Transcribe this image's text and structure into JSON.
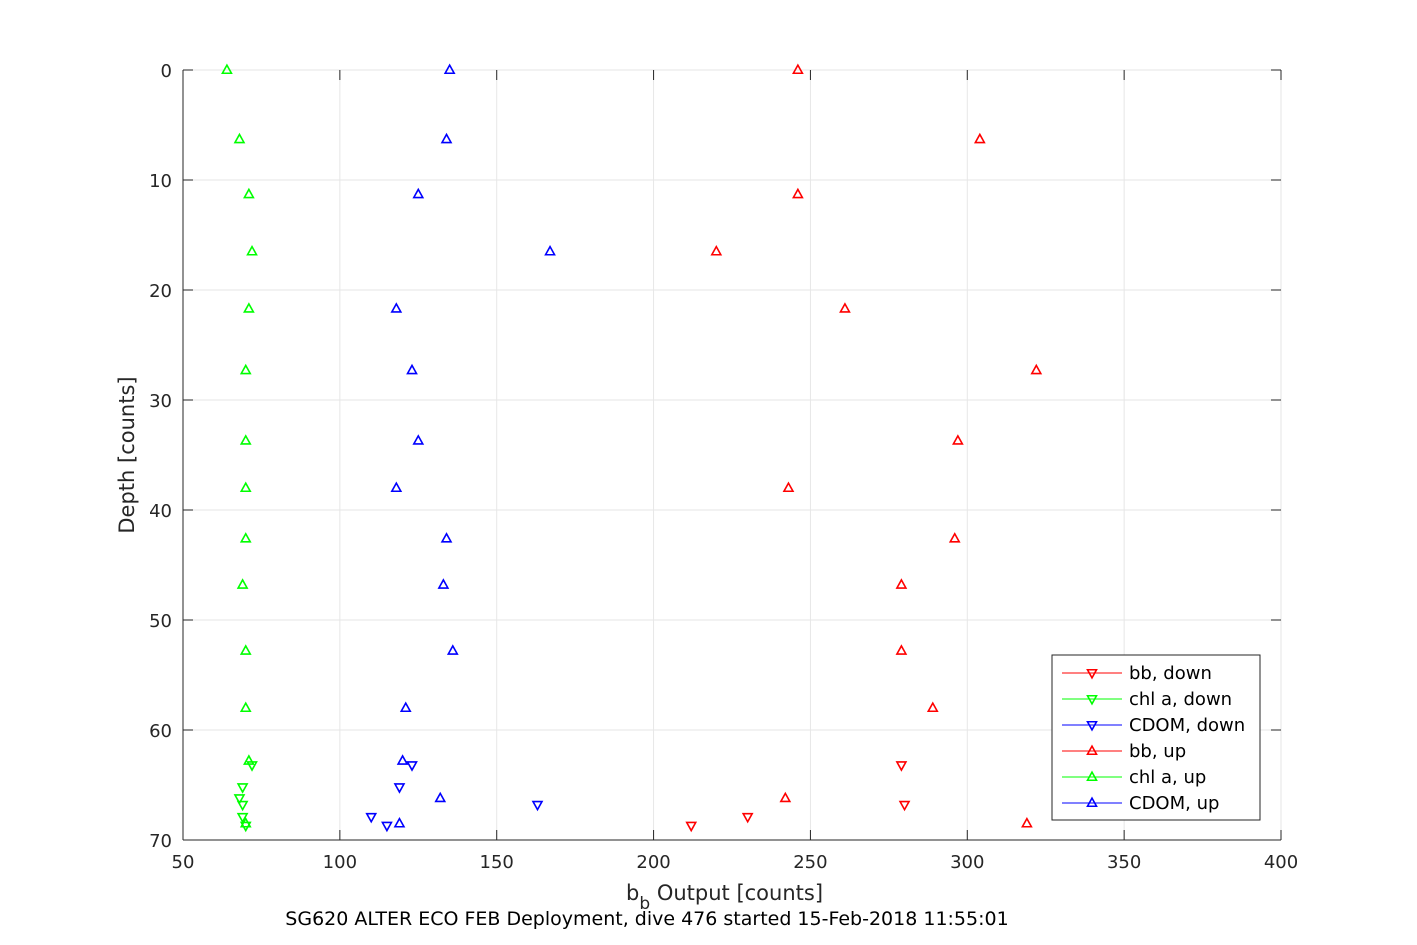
{
  "chart_data": {
    "type": "scatter",
    "xlabel": "b",
    "xlabel_subscript": "b",
    "xlabel_rest": " Output [counts]",
    "ylabel": "Depth [counts]",
    "caption": "SG620 ALTER ECO FEB Deployment, dive 476 started 15-Feb-2018 11:55:01",
    "xlim": [
      50,
      400
    ],
    "ylim": [
      0,
      70
    ],
    "y_reversed": true,
    "grid": true,
    "legend_position": "bottom-right",
    "xticks": [
      "50",
      "100",
      "150",
      "200",
      "250",
      "300",
      "350",
      "400"
    ],
    "yticks": [
      "0",
      "10",
      "20",
      "30",
      "40",
      "50",
      "60",
      "70"
    ],
    "series": [
      {
        "name": "bb, down",
        "color": "#ff0000",
        "marker": "triangle-down",
        "points": [
          [
            279,
            63.2
          ],
          [
            280,
            66.8
          ],
          [
            230,
            67.9
          ],
          [
            212,
            68.7
          ]
        ]
      },
      {
        "name": "chl a, down",
        "color": "#00ff00",
        "marker": "triangle-down",
        "points": [
          [
            72,
            63.2
          ],
          [
            69,
            65.2
          ],
          [
            68,
            66.2
          ],
          [
            69,
            66.8
          ],
          [
            69,
            67.9
          ],
          [
            70,
            68.7
          ]
        ]
      },
      {
        "name": "CDOM, down",
        "color": "#0000ff",
        "marker": "triangle-down",
        "points": [
          [
            123,
            63.2
          ],
          [
            119,
            65.2
          ],
          [
            163,
            66.8
          ],
          [
            110,
            67.9
          ],
          [
            115,
            68.7
          ]
        ]
      },
      {
        "name": "bb, up",
        "color": "#ff0000",
        "marker": "triangle-up",
        "points": [
          [
            246,
            0
          ],
          [
            304,
            6.3
          ],
          [
            246,
            11.3
          ],
          [
            220,
            16.5
          ],
          [
            261,
            21.7
          ],
          [
            322,
            27.3
          ],
          [
            297,
            33.7
          ],
          [
            243,
            38
          ],
          [
            296,
            42.6
          ],
          [
            279,
            46.8
          ],
          [
            279,
            52.8
          ],
          [
            289,
            58
          ],
          [
            242,
            66.2
          ],
          [
            319,
            68.5
          ]
        ]
      },
      {
        "name": "chl a, up",
        "color": "#00ff00",
        "marker": "triangle-up",
        "points": [
          [
            64,
            0
          ],
          [
            68,
            6.3
          ],
          [
            71,
            11.3
          ],
          [
            72,
            16.5
          ],
          [
            71,
            21.7
          ],
          [
            70,
            27.3
          ],
          [
            70,
            33.7
          ],
          [
            70,
            38
          ],
          [
            70,
            42.6
          ],
          [
            69,
            46.8
          ],
          [
            70,
            52.8
          ],
          [
            70,
            58
          ],
          [
            71,
            62.8
          ],
          [
            70,
            68.5
          ]
        ]
      },
      {
        "name": "CDOM, up",
        "color": "#0000ff",
        "marker": "triangle-up",
        "points": [
          [
            135,
            0
          ],
          [
            134,
            6.3
          ],
          [
            125,
            11.3
          ],
          [
            167,
            16.5
          ],
          [
            118,
            21.7
          ],
          [
            123,
            27.3
          ],
          [
            125,
            33.7
          ],
          [
            118,
            38
          ],
          [
            134,
            42.6
          ],
          [
            133,
            46.8
          ],
          [
            136,
            52.8
          ],
          [
            121,
            58
          ],
          [
            120,
            62.8
          ],
          [
            132,
            66.2
          ],
          [
            119,
            68.5
          ]
        ]
      }
    ]
  }
}
